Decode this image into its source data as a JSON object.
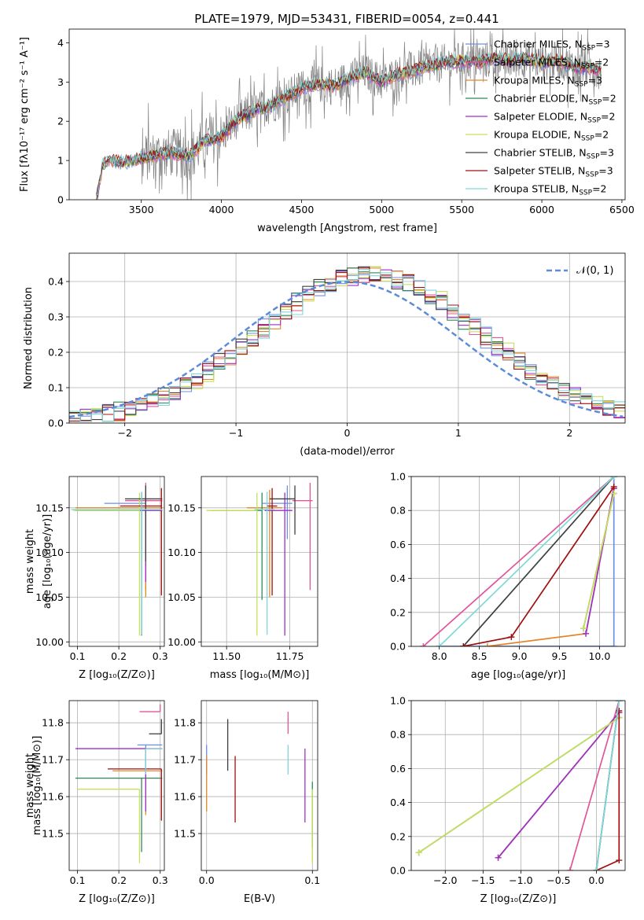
{
  "figure": {
    "title": "PLATE=1979, MJD=53431, FIBERID=0054, z=0.441"
  },
  "legend_models": [
    {
      "label": "Chabrier MILES, N",
      "sub": "SSP",
      "tail": "=3",
      "color": "#6e8fe8"
    },
    {
      "label": "Salpeter MILES, N",
      "sub": "SSP",
      "tail": "=2",
      "color": "#e0569a"
    },
    {
      "label": "Kroupa MILES, N",
      "sub": "SSP",
      "tail": "=3",
      "color": "#e0862a"
    },
    {
      "label": "Chabrier ELODIE, N",
      "sub": "SSP",
      "tail": "=2",
      "color": "#2e8b57"
    },
    {
      "label": "Salpeter ELODIE, N",
      "sub": "SSP",
      "tail": "=2",
      "color": "#9b30c8"
    },
    {
      "label": "Kroupa ELODIE, N",
      "sub": "SSP",
      "tail": "=2",
      "color": "#c8e05a"
    },
    {
      "label": "Chabrier STELIB, N",
      "sub": "SSP",
      "tail": "=3",
      "color": "#404040"
    },
    {
      "label": "Salpeter STELIB, N",
      "sub": "SSP",
      "tail": "=3",
      "color": "#a01010"
    },
    {
      "label": "Kroupa STELIB, N",
      "sub": "SSP",
      "tail": "=2",
      "color": "#7fd8d8"
    }
  ],
  "normal_legend": "𝒩(0, 1)",
  "chart_data": [
    {
      "id": "spectrum",
      "type": "line",
      "xlabel": "wavelength [Angstrom, rest frame]",
      "ylabel": "Flux [fλ10⁻¹⁷ erg cm⁻² s⁻¹ A⁻¹]",
      "xlim": [
        3050,
        6520
      ],
      "ylim": [
        0,
        4.35
      ],
      "xticks": [
        3500,
        4000,
        4500,
        5000,
        5500,
        6000,
        6500
      ],
      "yticks": [
        0,
        1,
        2,
        3,
        4
      ],
      "data_color": "#808080",
      "model_anchor_x": [
        3220,
        3260,
        3300,
        3400,
        3500,
        3600,
        3700,
        3800,
        3900,
        4000,
        4100,
        4200,
        4300,
        4400,
        4500,
        4600,
        4700,
        4800,
        4900,
        5000,
        5100,
        5200,
        5300,
        5400,
        5500,
        5600,
        5700,
        5800,
        5900,
        6000,
        6100,
        6200,
        6300,
        6370
      ],
      "model_anchor_y": [
        0.0,
        0.9,
        1.0,
        0.95,
        1.05,
        1.15,
        1.2,
        1.1,
        1.5,
        1.6,
        2.05,
        2.25,
        2.4,
        2.6,
        2.85,
        2.95,
        2.9,
        3.1,
        3.25,
        3.0,
        3.2,
        3.3,
        3.4,
        3.5,
        3.55,
        3.5,
        3.6,
        3.55,
        3.6,
        3.5,
        3.55,
        3.4,
        3.35,
        3.3
      ]
    },
    {
      "id": "residual_histogram",
      "type": "histogram",
      "xlabel": "(data-model)/error",
      "ylabel": "Normed distribution",
      "xlim": [
        -2.5,
        2.5
      ],
      "ylim": [
        0,
        0.48
      ],
      "xticks": [
        -2,
        -1,
        0,
        1,
        2
      ],
      "yticks": [
        0.0,
        0.1,
        0.2,
        0.3,
        0.4
      ],
      "bin_width": 0.1,
      "reference_curve": "normal(0,1)",
      "reference_color": "#5b8bd9"
    },
    {
      "id": "age_vs_Z",
      "type": "errorbar",
      "xlabel": "Z [log₁₀(Z/Z⊙)]",
      "ylabel": "age  [log₁₀(age/yr)]",
      "xlim": [
        0.08,
        0.31
      ],
      "ylim": [
        9.995,
        10.185
      ],
      "xticks": [
        0.1,
        0.2,
        0.3
      ],
      "yticks": [
        10.0,
        10.05,
        10.1,
        10.15
      ],
      "points": [
        {
          "x": 0.265,
          "y": 10.155,
          "xerr": [
            0.1,
            0.0
          ],
          "yerr": [
            0.04,
            0.02
          ],
          "color": "#6e8fe8"
        },
        {
          "x": 0.265,
          "y": 10.158,
          "xerr": [
            0.05,
            0.04
          ],
          "yerr": [
            0.1,
            0.02
          ],
          "color": "#e0569a"
        },
        {
          "x": 0.265,
          "y": 10.15,
          "xerr": [
            0.17,
            0.04
          ],
          "yerr": [
            0.1,
            0.02
          ],
          "color": "#e0862a"
        },
        {
          "x": 0.255,
          "y": 10.147,
          "xerr": [
            0.16,
            0.0
          ],
          "yerr": [
            0.14,
            0.02
          ],
          "color": "#2e8b57"
        },
        {
          "x": 0.265,
          "y": 10.147,
          "xerr": [
            0.17,
            0.04
          ],
          "yerr": [
            0.08,
            0.02
          ],
          "color": "#9b30c8"
        },
        {
          "x": 0.25,
          "y": 10.147,
          "xerr": [
            0.16,
            0.0
          ],
          "yerr": [
            0.14,
            0.02
          ],
          "color": "#c8e05a"
        },
        {
          "x": 0.265,
          "y": 10.16,
          "xerr": [
            0.05,
            0.04
          ],
          "yerr": [
            0.07,
            0.015
          ],
          "color": "#404040"
        },
        {
          "x": 0.303,
          "y": 10.152,
          "xerr": [
            0.1,
            0.0
          ],
          "yerr": [
            0.1,
            0.02
          ],
          "color": "#a01010"
        },
        {
          "x": 0.255,
          "y": 10.148,
          "xerr": [
            0.17,
            0.05
          ],
          "yerr": [
            0.14,
            0.02
          ],
          "color": "#7fd8d8"
        }
      ]
    },
    {
      "id": "age_vs_mass",
      "type": "errorbar",
      "xlabel": "mass [log₁₀(M/M⊙)]",
      "ylabel": "",
      "xlim": [
        11.4,
        11.86
      ],
      "ylim": [
        9.995,
        10.185
      ],
      "xticks": [
        11.5,
        11.75
      ],
      "yticks": [
        10.0,
        10.05,
        10.1,
        10.15
      ],
      "points": [
        {
          "x": 11.74,
          "y": 10.155,
          "xerr": [
            0.1,
            0.02
          ],
          "yerr": [
            0.04,
            0.02
          ],
          "color": "#6e8fe8"
        },
        {
          "x": 11.83,
          "y": 10.158,
          "xerr": [
            0.07,
            0.01
          ],
          "yerr": [
            0.1,
            0.02
          ],
          "color": "#e0569a"
        },
        {
          "x": 11.67,
          "y": 10.15,
          "xerr": [
            0.09,
            0.05
          ],
          "yerr": [
            0.1,
            0.02
          ],
          "color": "#e0862a"
        },
        {
          "x": 11.64,
          "y": 10.147,
          "xerr": [
            0.2,
            0.0
          ],
          "yerr": [
            0.1,
            0.02
          ],
          "color": "#2e8b57"
        },
        {
          "x": 11.73,
          "y": 10.147,
          "xerr": [
            0.08,
            0.03
          ],
          "yerr": [
            0.14,
            0.02
          ],
          "color": "#9b30c8"
        },
        {
          "x": 11.62,
          "y": 10.147,
          "xerr": [
            0.2,
            0.0
          ],
          "yerr": [
            0.14,
            0.02
          ],
          "color": "#c8e05a"
        },
        {
          "x": 11.77,
          "y": 10.16,
          "xerr": [
            0.1,
            0.0
          ],
          "yerr": [
            0.04,
            0.015
          ],
          "color": "#404040"
        },
        {
          "x": 11.68,
          "y": 10.152,
          "xerr": [
            0.02,
            0.02
          ],
          "yerr": [
            0.1,
            0.02
          ],
          "color": "#a01010"
        },
        {
          "x": 11.66,
          "y": 10.148,
          "xerr": [
            0.05,
            0.03
          ],
          "yerr": [
            0.14,
            0.02
          ],
          "color": "#7fd8d8"
        }
      ]
    },
    {
      "id": "mass_weight_vs_age",
      "type": "line",
      "xlabel": "age  [log₁₀(age/yr)]",
      "ylabel": "mass weight",
      "xlim": [
        7.65,
        10.32
      ],
      "ylim": [
        0,
        1.0
      ],
      "xticks": [
        8.0,
        8.5,
        9.0,
        9.5,
        10.0
      ],
      "yticks": [
        0.0,
        0.2,
        0.4,
        0.6,
        0.8,
        1.0
      ],
      "series": [
        {
          "color": "#6e8fe8",
          "x": [
            8.0,
            10.18,
            10.18
          ],
          "y": [
            0.0,
            0.0,
            1.0
          ]
        },
        {
          "color": "#e0569a",
          "x": [
            7.8,
            10.18
          ],
          "y": [
            0.0,
            1.0
          ]
        },
        {
          "color": "#e0862a",
          "x": [
            8.6,
            9.83,
            10.18
          ],
          "y": [
            0.0,
            0.075,
            0.93
          ]
        },
        {
          "color": "#2e8b57",
          "x": [
            9.8,
            10.18
          ],
          "y": [
            0.105,
            0.9
          ]
        },
        {
          "color": "#9b30c8",
          "x": [
            9.83,
            10.18
          ],
          "y": [
            0.075,
            0.93
          ]
        },
        {
          "color": "#c8e05a",
          "x": [
            9.8,
            10.18
          ],
          "y": [
            0.105,
            0.9
          ]
        },
        {
          "color": "#404040",
          "x": [
            8.3,
            10.18
          ],
          "y": [
            0.0,
            1.0
          ]
        },
        {
          "color": "#a01010",
          "x": [
            8.3,
            8.9,
            10.18
          ],
          "y": [
            0.0,
            0.055,
            0.94
          ]
        },
        {
          "color": "#7fd8d8",
          "x": [
            8.0,
            10.18
          ],
          "y": [
            0.0,
            1.0
          ]
        }
      ]
    },
    {
      "id": "mass_vs_Z",
      "type": "errorbar",
      "xlabel": "Z [log₁₀(Z/Z⊙)]",
      "ylabel": "mass [log₁₀(M/M⊙)]",
      "xlim": [
        0.08,
        0.31
      ],
      "ylim": [
        11.4,
        11.86
      ],
      "xticks": [
        0.1,
        0.2,
        0.3
      ],
      "yticks": [
        11.5,
        11.6,
        11.7,
        11.8
      ],
      "points": [
        {
          "x": 0.265,
          "y": 11.74,
          "xerr": [
            0.02,
            0.04
          ],
          "yerr": [
            0.12,
            0.0
          ],
          "color": "#6e8fe8"
        },
        {
          "x": 0.3,
          "y": 11.83,
          "xerr": [
            0.05,
            0.0
          ],
          "yerr": [
            0.0,
            0.02
          ],
          "color": "#e0569a"
        },
        {
          "x": 0.265,
          "y": 11.67,
          "xerr": [
            0.08,
            0.04
          ],
          "yerr": [
            0.12,
            0.0
          ],
          "color": "#e0862a"
        },
        {
          "x": 0.255,
          "y": 11.65,
          "xerr": [
            0.16,
            0.05
          ],
          "yerr": [
            0.2,
            0.0
          ],
          "color": "#2e8b57"
        },
        {
          "x": 0.265,
          "y": 11.73,
          "xerr": [
            0.17,
            0.04
          ],
          "yerr": [
            0.17,
            0.0
          ],
          "color": "#9b30c8"
        },
        {
          "x": 0.25,
          "y": 11.62,
          "xerr": [
            0.15,
            0.0
          ],
          "yerr": [
            0.2,
            0.0
          ],
          "color": "#c8e05a"
        },
        {
          "x": 0.303,
          "y": 11.77,
          "xerr": [
            0.03,
            0.0
          ],
          "yerr": [
            0.0,
            0.04
          ],
          "color": "#404040"
        },
        {
          "x": 0.303,
          "y": 11.675,
          "xerr": [
            0.13,
            0.0
          ],
          "yerr": [
            0.14,
            0.0
          ],
          "color": "#a01010"
        },
        {
          "x": 0.265,
          "y": 11.73,
          "xerr": [
            0.0,
            0.04
          ],
          "yerr": [
            0.07,
            0.0
          ],
          "color": "#7fd8d8"
        }
      ]
    },
    {
      "id": "mass_vs_EBV",
      "type": "errorbar",
      "xlabel": "E(B-V)",
      "ylabel": "",
      "xlim": [
        -0.005,
        0.105
      ],
      "ylim": [
        11.4,
        11.86
      ],
      "xticks": [
        0.0,
        0.1
      ],
      "yticks": [
        11.5,
        11.6,
        11.7,
        11.8
      ],
      "points": [
        {
          "x": 0.0,
          "y": 11.7,
          "xerr": [
            0,
            0
          ],
          "yerr": [
            0.04,
            0.04
          ],
          "color": "#6e8fe8"
        },
        {
          "x": 0.077,
          "y": 11.77,
          "xerr": [
            0,
            0
          ],
          "yerr": [
            0.0,
            0.06
          ],
          "color": "#e0569a"
        },
        {
          "x": 0.0,
          "y": 11.66,
          "xerr": [
            0,
            0
          ],
          "yerr": [
            0.1,
            0.05
          ],
          "color": "#e0862a"
        },
        {
          "x": 0.1,
          "y": 11.58,
          "xerr": [
            0,
            0
          ],
          "yerr": [
            0.12,
            0.06
          ],
          "color": "#2e8b57"
        },
        {
          "x": 0.093,
          "y": 11.65,
          "xerr": [
            0,
            0
          ],
          "yerr": [
            0.12,
            0.08
          ],
          "color": "#9b30c8"
        },
        {
          "x": 0.1,
          "y": 11.56,
          "xerr": [
            0,
            0
          ],
          "yerr": [
            0.14,
            0.06
          ],
          "color": "#c8e05a"
        },
        {
          "x": 0.02,
          "y": 11.74,
          "xerr": [
            0,
            0
          ],
          "yerr": [
            0.07,
            0.07
          ],
          "color": "#404040"
        },
        {
          "x": 0.027,
          "y": 11.62,
          "xerr": [
            0,
            0
          ],
          "yerr": [
            0.09,
            0.09
          ],
          "color": "#a01010"
        },
        {
          "x": 0.077,
          "y": 11.7,
          "xerr": [
            0,
            0
          ],
          "yerr": [
            0.04,
            0.04
          ],
          "color": "#7fd8d8"
        }
      ]
    },
    {
      "id": "mass_weight_vs_Z",
      "type": "line",
      "xlabel": "Z [log₁₀(Z/Z⊙)]",
      "ylabel": "mass weight",
      "xlim": [
        -2.45,
        0.38
      ],
      "ylim": [
        0,
        1.0
      ],
      "xticks": [
        -2.0,
        -1.5,
        -1.0,
        -0.5,
        0.0
      ],
      "yticks": [
        0.0,
        0.2,
        0.4,
        0.6,
        0.8,
        1.0
      ],
      "series": [
        {
          "color": "#6e8fe8",
          "x": [
            0.0,
            0.3
          ],
          "y": [
            0.0,
            1.0
          ]
        },
        {
          "color": "#e0569a",
          "x": [
            -0.35,
            0.3
          ],
          "y": [
            0.0,
            1.0
          ]
        },
        {
          "color": "#e0862a",
          "x": [
            -1.3,
            0.3
          ],
          "y": [
            0.075,
            0.93
          ]
        },
        {
          "color": "#2e8b57",
          "x": [
            -2.35,
            0.3
          ],
          "y": [
            0.105,
            0.9
          ]
        },
        {
          "color": "#9b30c8",
          "x": [
            -1.3,
            0.3
          ],
          "y": [
            0.075,
            0.93
          ]
        },
        {
          "color": "#c8e05a",
          "x": [
            -2.35,
            0.3
          ],
          "y": [
            0.105,
            0.9
          ]
        },
        {
          "color": "#404040",
          "x": [
            0.0,
            0.3
          ],
          "y": [
            0.0,
            1.0
          ]
        },
        {
          "color": "#a01010",
          "x": [
            0.0,
            0.3,
            0.3
          ],
          "y": [
            0.0,
            0.06,
            0.94
          ]
        },
        {
          "color": "#7fd8d8",
          "x": [
            0.0,
            0.3
          ],
          "y": [
            0.0,
            1.0
          ]
        }
      ]
    }
  ]
}
